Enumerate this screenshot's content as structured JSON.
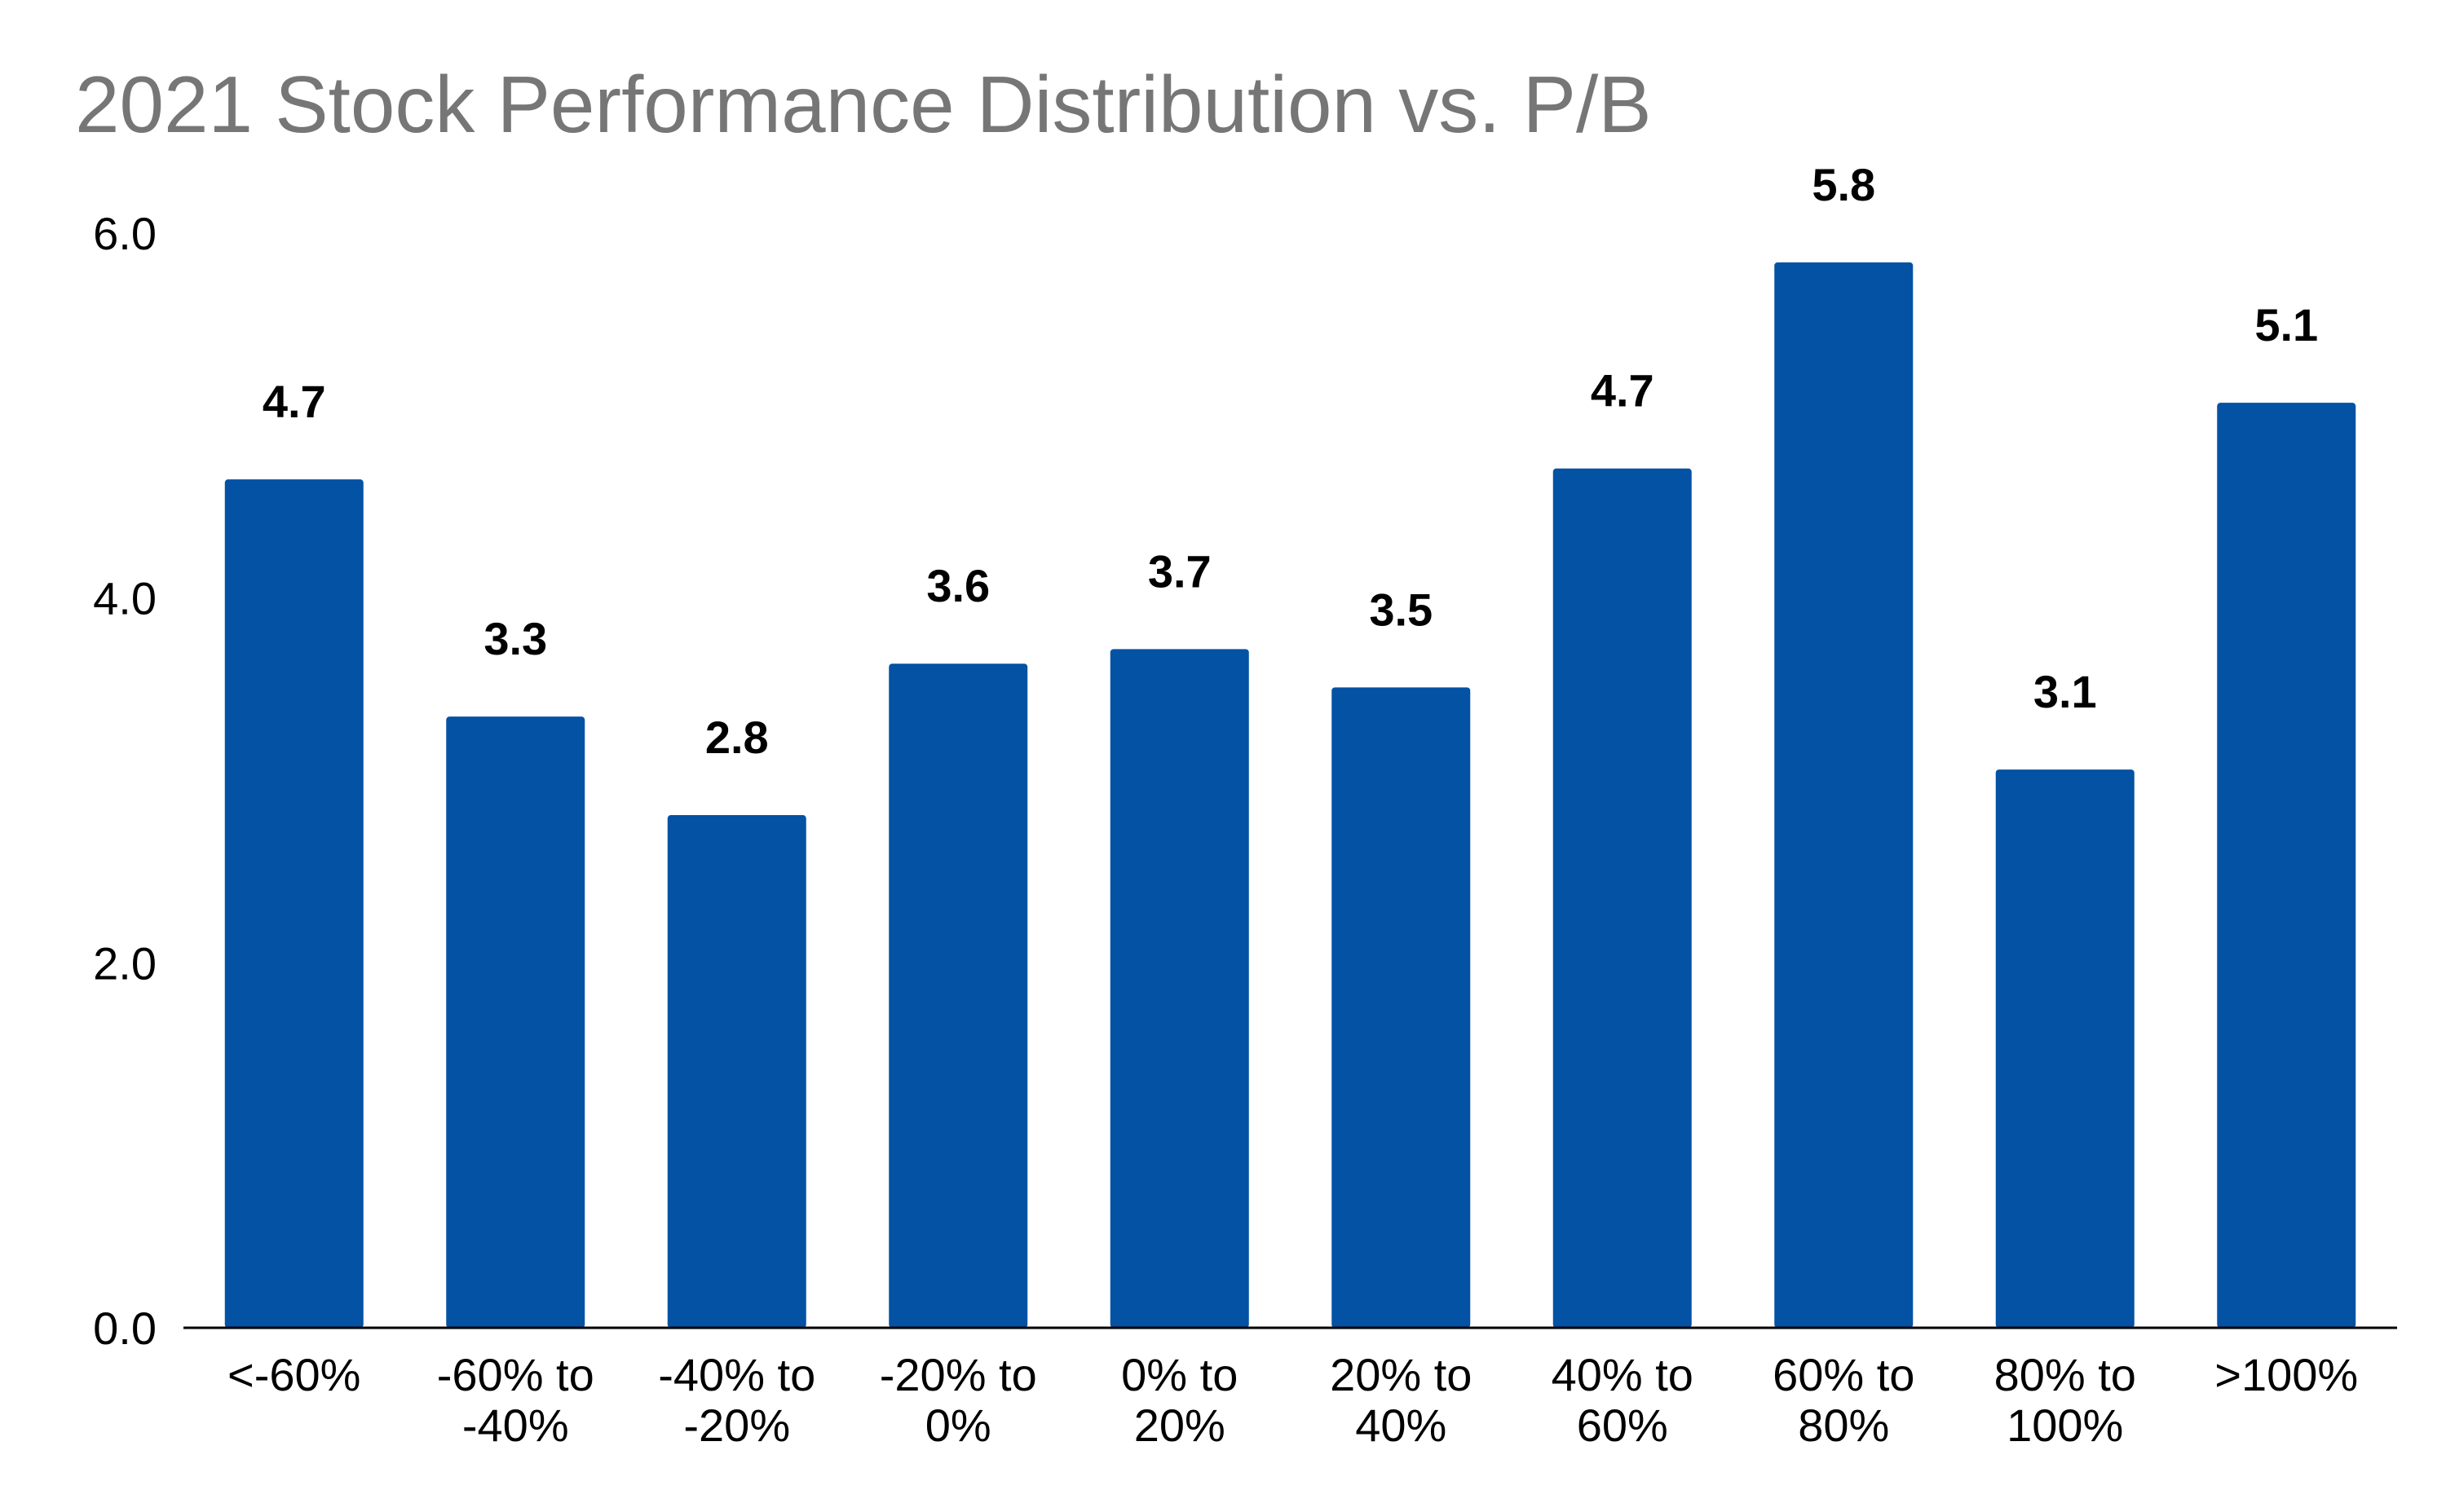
{
  "chart_data": {
    "type": "bar",
    "title": "2021 Stock Performance Distribution vs. P/B",
    "categories": [
      [
        "<-60%"
      ],
      [
        "-60% to",
        "-40%"
      ],
      [
        "-40% to",
        "-20%"
      ],
      [
        "-20% to",
        "0%"
      ],
      [
        "0% to",
        "20%"
      ],
      [
        "20% to",
        "40%"
      ],
      [
        "40% to",
        "60%"
      ],
      [
        "60% to",
        "80%"
      ],
      [
        "80% to",
        "100%"
      ],
      [
        ">100%"
      ]
    ],
    "values": [
      4.65,
      3.35,
      2.81,
      3.64,
      3.72,
      3.51,
      4.71,
      5.84,
      3.06,
      5.07
    ],
    "data_labels": [
      "4.7",
      "3.3",
      "2.8",
      "3.6",
      "3.7",
      "3.5",
      "4.7",
      "5.8",
      "3.1",
      "5.1"
    ],
    "yticks": [
      "0.0",
      "2.0",
      "4.0",
      "6.0"
    ],
    "ytick_values": [
      0,
      2,
      4,
      6
    ],
    "ylim": [
      0,
      6
    ],
    "xlabel": "",
    "ylabel": "",
    "grid": false,
    "legend": "none",
    "bar_color": "#0452A4"
  }
}
